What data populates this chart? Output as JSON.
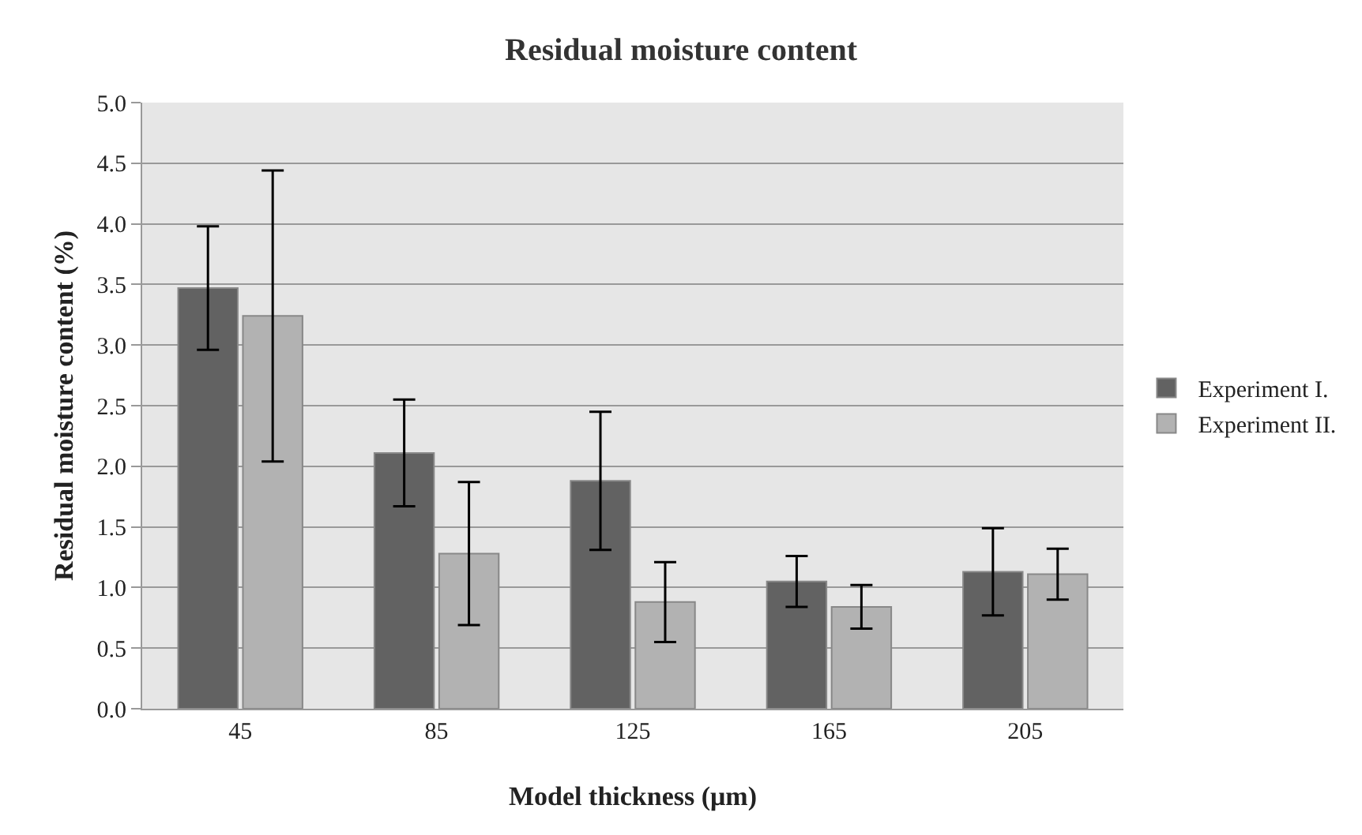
{
  "chart_data": {
    "type": "bar",
    "title": "Residual moisture content",
    "xlabel": "Model thickness (μm)",
    "ylabel": "Residual moisture content (%)",
    "categories": [
      "45",
      "85",
      "125",
      "165",
      "205"
    ],
    "series": [
      {
        "name": "Experiment I.",
        "color": "#626262",
        "values": [
          3.47,
          2.11,
          1.88,
          1.05,
          1.13
        ],
        "errors": [
          0.51,
          0.44,
          0.57,
          0.21,
          0.36
        ]
      },
      {
        "name": "Experiment II.",
        "color": "#b2b2b2",
        "values": [
          3.24,
          1.28,
          0.88,
          0.84,
          1.11
        ],
        "errors": [
          1.2,
          0.59,
          0.33,
          0.18,
          0.21
        ]
      }
    ],
    "ylim": [
      0,
      5
    ],
    "yticks": [
      {
        "value": 0,
        "label": "0.0"
      },
      {
        "value": 0.5,
        "label": "0.5"
      },
      {
        "value": 1,
        "label": "1.0"
      },
      {
        "value": 1.5,
        "label": "1.5"
      },
      {
        "value": 2,
        "label": "2.0"
      },
      {
        "value": 2.5,
        "label": "2.5"
      },
      {
        "value": 3,
        "label": "3.0"
      },
      {
        "value": 3.5,
        "label": "3.5"
      },
      {
        "value": 4,
        "label": "4.0"
      },
      {
        "value": 4.5,
        "label": "4.5"
      },
      {
        "value": 5,
        "label": "5.0"
      }
    ],
    "grid": "y",
    "legend": "right"
  }
}
